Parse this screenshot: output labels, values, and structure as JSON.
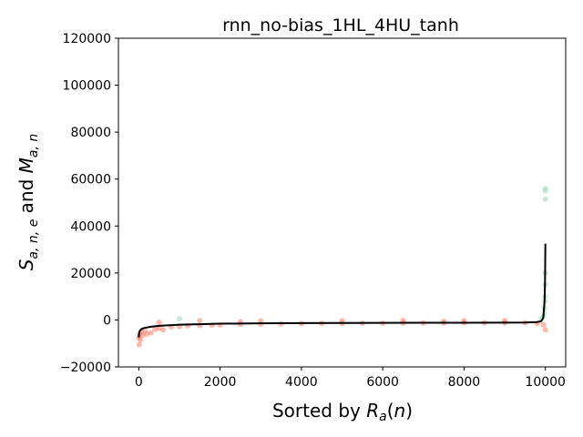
{
  "chart_data": {
    "type": "scatter",
    "title": "rnn_no-bias_1HL_4HU_tanh",
    "xlabel": "Sorted by R_a(n)",
    "ylabel": "S_{a,n,e} and M_{a,n}",
    "xlim": [
      -500,
      10500
    ],
    "ylim": [
      -20000,
      120000
    ],
    "x_ticks": [
      0,
      2000,
      4000,
      6000,
      8000,
      10000
    ],
    "x_tick_labels": [
      "0",
      "2000",
      "4000",
      "6000",
      "8000",
      "10000"
    ],
    "y_ticks": [
      -20000,
      0,
      20000,
      40000,
      60000,
      80000,
      100000,
      120000
    ],
    "y_tick_labels": [
      "−20000",
      "0",
      "20000",
      "40000",
      "60000",
      "80000",
      "100000",
      "120000"
    ],
    "grid": false,
    "legend": "none",
    "series": [
      {
        "kind": "scatter",
        "color": "#FF6347",
        "points": [
          [
            0,
            -7500
          ],
          [
            10,
            -10500
          ],
          [
            20,
            -6000
          ],
          [
            40,
            -8500
          ],
          [
            60,
            -5000
          ],
          [
            100,
            -6500
          ],
          [
            150,
            -4500
          ],
          [
            200,
            -6000
          ],
          [
            300,
            -5500
          ],
          [
            400,
            -4000
          ],
          [
            500,
            -3500
          ],
          [
            600,
            -4200
          ],
          [
            800,
            -3000
          ],
          [
            1000,
            -2800
          ],
          [
            1200,
            -2500
          ],
          [
            1500,
            -2400
          ],
          [
            1800,
            -2200
          ],
          [
            2000,
            -2100
          ],
          [
            2500,
            -1900
          ],
          [
            3000,
            -1800
          ],
          [
            3500,
            -1700
          ],
          [
            4000,
            -1600
          ],
          [
            4500,
            -1500
          ],
          [
            5000,
            -1500
          ],
          [
            5500,
            -1400
          ],
          [
            6000,
            -1400
          ],
          [
            6500,
            -1300
          ],
          [
            7000,
            -1300
          ],
          [
            7500,
            -1300
          ],
          [
            8000,
            -1200
          ],
          [
            8500,
            -1200
          ],
          [
            9000,
            -1200
          ],
          [
            9500,
            -1200
          ],
          [
            9800,
            -1500
          ],
          [
            9950,
            -2000
          ],
          [
            10000,
            -4200
          ],
          [
            1500,
            -300
          ],
          [
            3000,
            -400
          ],
          [
            5000,
            -300
          ],
          [
            6500,
            -200
          ],
          [
            8000,
            -300
          ],
          [
            9000,
            -300
          ],
          [
            500,
            -1000
          ],
          [
            2500,
            -800
          ],
          [
            7500,
            -600
          ]
        ]
      },
      {
        "kind": "scatter",
        "color": "#9ED8B8",
        "points": [
          [
            1000,
            500
          ],
          [
            9900,
            500
          ],
          [
            9950,
            1500
          ],
          [
            9970,
            3000
          ],
          [
            9980,
            5000
          ],
          [
            9990,
            8000
          ],
          [
            9992,
            10000
          ],
          [
            9995,
            15000
          ],
          [
            9997,
            20000
          ],
          [
            9998,
            51500
          ],
          [
            9999,
            55000
          ],
          [
            10000,
            56000
          ]
        ]
      },
      {
        "kind": "line",
        "color": "#000000",
        "points": [
          [
            0,
            -7500
          ],
          [
            10,
            -5500
          ],
          [
            30,
            -4500
          ],
          [
            60,
            -4000
          ],
          [
            100,
            -3600
          ],
          [
            200,
            -3200
          ],
          [
            300,
            -2900
          ],
          [
            500,
            -2500
          ],
          [
            800,
            -2200
          ],
          [
            1000,
            -2000
          ],
          [
            1500,
            -1800
          ],
          [
            2000,
            -1600
          ],
          [
            3000,
            -1450
          ],
          [
            4000,
            -1350
          ],
          [
            5000,
            -1300
          ],
          [
            6000,
            -1250
          ],
          [
            7000,
            -1200
          ],
          [
            8000,
            -1200
          ],
          [
            9000,
            -1150
          ],
          [
            9500,
            -1100
          ],
          [
            9800,
            -900
          ],
          [
            9900,
            -500
          ],
          [
            9950,
            1000
          ],
          [
            9980,
            8000
          ],
          [
            9990,
            15000
          ],
          [
            9995,
            22000
          ],
          [
            10000,
            32500
          ]
        ]
      }
    ]
  }
}
